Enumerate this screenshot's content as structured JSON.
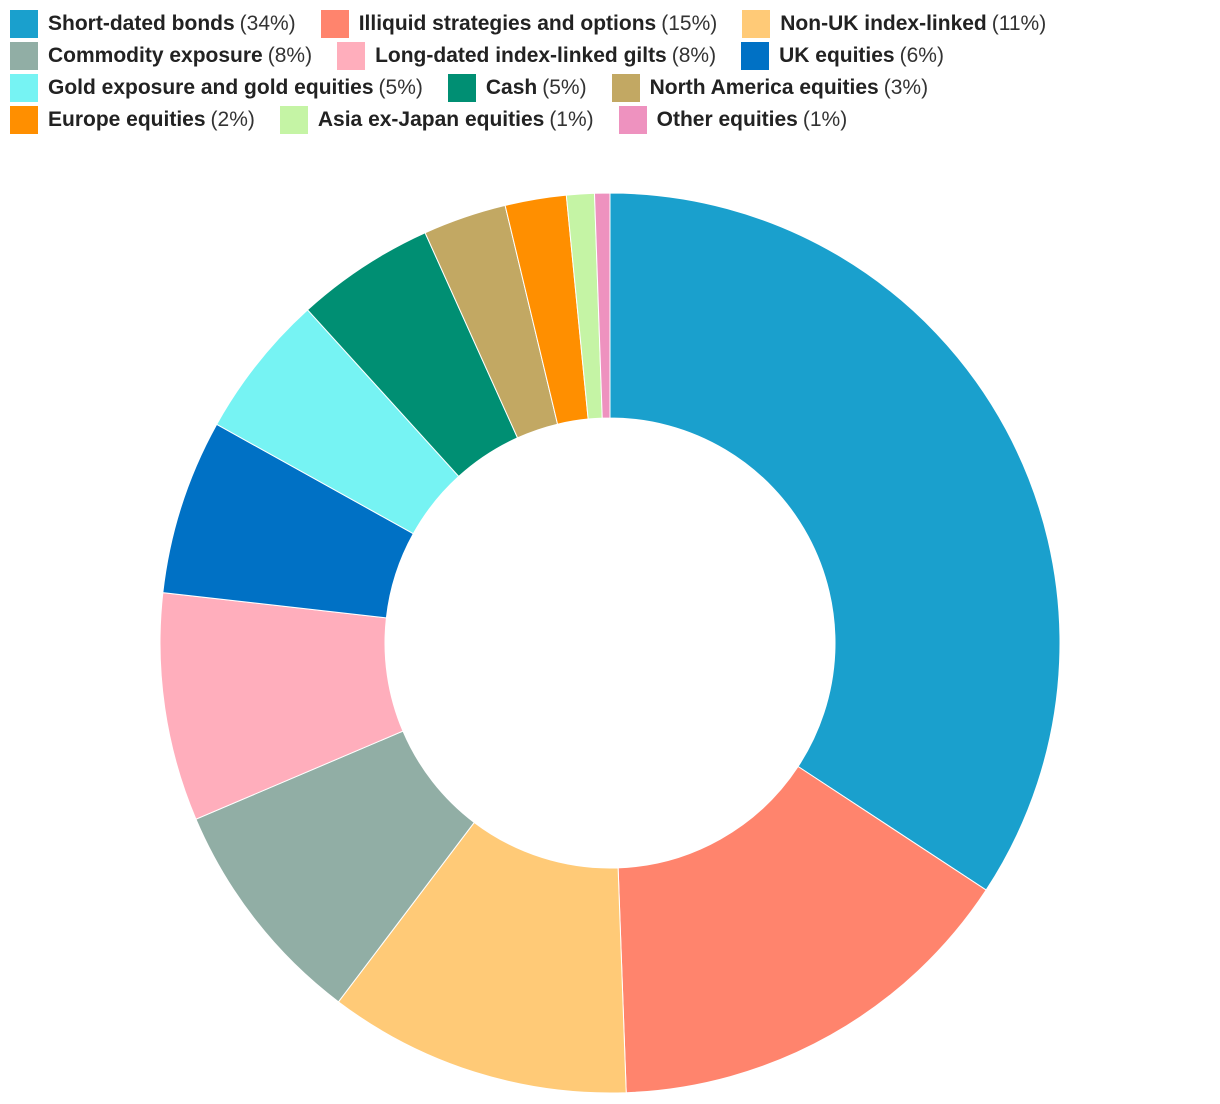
{
  "chart_data": {
    "type": "pie",
    "donut": true,
    "title": "",
    "legend_position": "top",
    "slices": [
      {
        "label": "Short-dated bonds",
        "value_label": "(34%)",
        "value": 34.3,
        "color": "#1aa0cd"
      },
      {
        "label": "Illiquid strategies and options",
        "value_label": "(15%)",
        "value": 15.2,
        "color": "#ff846d"
      },
      {
        "label": "Non-UK index-linked",
        "value_label": "(11%)",
        "value": 10.9,
        "color": "#ffca77"
      },
      {
        "label": "Commodity exposure",
        "value_label": "(8%)",
        "value": 8.3,
        "color": "#91aea5"
      },
      {
        "label": "Long-dated index-linked gilts",
        "value_label": "(8%)",
        "value": 8.2,
        "color": "#ffaebc"
      },
      {
        "label": "UK equities",
        "value_label": "(6%)",
        "value": 6.3,
        "color": "#0071c5"
      },
      {
        "label": "Gold exposure and gold equities",
        "value_label": "(5%)",
        "value": 5.2,
        "color": "#76f3f3"
      },
      {
        "label": "Cash",
        "value_label": "(5%)",
        "value": 5.0,
        "color": "#008f73"
      },
      {
        "label": "North America equities",
        "value_label": "(3%)",
        "value": 3.0,
        "color": "#c2a863"
      },
      {
        "label": "Europe equities",
        "value_label": "(2%)",
        "value": 2.2,
        "color": "#ff8f00"
      },
      {
        "label": "Asia ex-Japan equities",
        "value_label": "(1%)",
        "value": 1.0,
        "color": "#c5f4a5"
      },
      {
        "label": "Other equities",
        "value_label": "(1%)",
        "value": 0.55,
        "color": "#ee92bf"
      }
    ],
    "legend_rows": [
      [
        0,
        1,
        2
      ],
      [
        3,
        4,
        5
      ],
      [
        6,
        7,
        8
      ],
      [
        9,
        10,
        11
      ]
    ]
  }
}
